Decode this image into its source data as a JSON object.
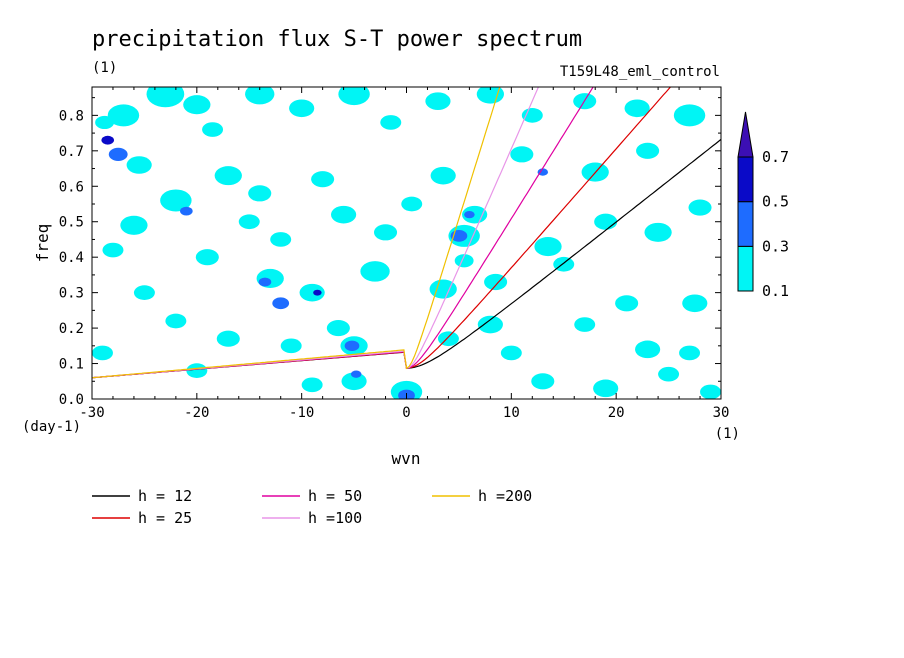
{
  "chart_data": {
    "type": "heatmap",
    "title": "precipitation flux S-T power spectrum",
    "units_label": "(1)",
    "run_label": "T159L48_eml_control",
    "xlabel": "wvn",
    "ylabel": "freq",
    "x_unit_label": "(1)",
    "y_unit_label": "(day-1)",
    "xlim": [
      -30,
      30
    ],
    "ylim": [
      0,
      0.88
    ],
    "x_ticks": [
      "-30",
      "-20",
      "-10",
      "0",
      "10",
      "20",
      "30"
    ],
    "x_tick_values": [
      -30,
      -20,
      -10,
      0,
      10,
      20,
      30
    ],
    "y_ticks": [
      "0.0",
      "0.1",
      "0.2",
      "0.3",
      "0.4",
      "0.5",
      "0.6",
      "0.7",
      "0.8"
    ],
    "y_tick_values": [
      0,
      0.1,
      0.2,
      0.3,
      0.4,
      0.5,
      0.6,
      0.7,
      0.8
    ],
    "contour_levels": [
      "0.1",
      "0.3",
      "0.5",
      "0.7"
    ],
    "contour_level_values": [
      0.1,
      0.3,
      0.5,
      0.7
    ],
    "level_colors": [
      "#00f5f5",
      "#1e6cff",
      "#0a0ac8",
      "#3c0fb4"
    ],
    "spectral_patches": [
      {
        "x": -28.8,
        "y": 0.78,
        "r": 0.9,
        "level": 1
      },
      {
        "x": -28.5,
        "y": 0.73,
        "r": 0.6,
        "level": 3
      },
      {
        "x": -27.5,
        "y": 0.69,
        "r": 0.9,
        "level": 2
      },
      {
        "x": -25.5,
        "y": 0.66,
        "r": 1.2,
        "level": 1
      },
      {
        "x": -27.0,
        "y": 0.8,
        "r": 1.5,
        "level": 1
      },
      {
        "x": -23.0,
        "y": 0.86,
        "r": 1.8,
        "level": 1
      },
      {
        "x": -20.0,
        "y": 0.83,
        "r": 1.3,
        "level": 1
      },
      {
        "x": -18.5,
        "y": 0.76,
        "r": 1.0,
        "level": 1
      },
      {
        "x": -14.0,
        "y": 0.86,
        "r": 1.4,
        "level": 1
      },
      {
        "x": -10.0,
        "y": 0.82,
        "r": 1.2,
        "level": 1
      },
      {
        "x": -5.0,
        "y": 0.86,
        "r": 1.5,
        "level": 1
      },
      {
        "x": -1.5,
        "y": 0.78,
        "r": 1.0,
        "level": 1
      },
      {
        "x": 3.0,
        "y": 0.84,
        "r": 1.2,
        "level": 1
      },
      {
        "x": 8.0,
        "y": 0.86,
        "r": 1.3,
        "level": 1
      },
      {
        "x": 12.0,
        "y": 0.8,
        "r": 1.0,
        "level": 1
      },
      {
        "x": 17.0,
        "y": 0.84,
        "r": 1.1,
        "level": 1
      },
      {
        "x": 22.0,
        "y": 0.82,
        "r": 1.2,
        "level": 1
      },
      {
        "x": 27.0,
        "y": 0.8,
        "r": 1.5,
        "level": 1
      },
      {
        "x": -22.0,
        "y": 0.56,
        "r": 1.5,
        "level": 1
      },
      {
        "x": -21.0,
        "y": 0.53,
        "r": 0.6,
        "level": 2
      },
      {
        "x": -17.0,
        "y": 0.63,
        "r": 1.3,
        "level": 1
      },
      {
        "x": -14.0,
        "y": 0.58,
        "r": 1.1,
        "level": 1
      },
      {
        "x": -15.0,
        "y": 0.5,
        "r": 1.0,
        "level": 1
      },
      {
        "x": -12.0,
        "y": 0.45,
        "r": 1.0,
        "level": 1
      },
      {
        "x": -26.0,
        "y": 0.49,
        "r": 1.3,
        "level": 1
      },
      {
        "x": -28.0,
        "y": 0.42,
        "r": 1.0,
        "level": 1
      },
      {
        "x": -19.0,
        "y": 0.4,
        "r": 1.1,
        "level": 1
      },
      {
        "x": -13.0,
        "y": 0.34,
        "r": 1.3,
        "level": 1
      },
      {
        "x": -13.5,
        "y": 0.33,
        "r": 0.6,
        "level": 2
      },
      {
        "x": -12.0,
        "y": 0.27,
        "r": 0.8,
        "level": 2
      },
      {
        "x": -9.0,
        "y": 0.3,
        "r": 1.2,
        "level": 1
      },
      {
        "x": -8.5,
        "y": 0.3,
        "r": 0.4,
        "level": 3
      },
      {
        "x": -25.0,
        "y": 0.3,
        "r": 1.0,
        "level": 1
      },
      {
        "x": -22.0,
        "y": 0.22,
        "r": 1.0,
        "level": 1
      },
      {
        "x": -17.0,
        "y": 0.17,
        "r": 1.1,
        "level": 1
      },
      {
        "x": -11.0,
        "y": 0.15,
        "r": 1.0,
        "level": 1
      },
      {
        "x": -6.5,
        "y": 0.2,
        "r": 1.1,
        "level": 1
      },
      {
        "x": -5.0,
        "y": 0.15,
        "r": 1.3,
        "level": 1
      },
      {
        "x": -5.2,
        "y": 0.15,
        "r": 0.7,
        "level": 2
      },
      {
        "x": -5.0,
        "y": 0.05,
        "r": 1.2,
        "level": 1
      },
      {
        "x": -4.8,
        "y": 0.07,
        "r": 0.5,
        "level": 2
      },
      {
        "x": 0.0,
        "y": 0.02,
        "r": 1.5,
        "level": 1
      },
      {
        "x": 0.0,
        "y": 0.01,
        "r": 0.8,
        "level": 2
      },
      {
        "x": -9.0,
        "y": 0.04,
        "r": 1.0,
        "level": 1
      },
      {
        "x": -20.0,
        "y": 0.08,
        "r": 1.0,
        "level": 1
      },
      {
        "x": -3.0,
        "y": 0.36,
        "r": 1.4,
        "level": 1
      },
      {
        "x": -2.0,
        "y": 0.47,
        "r": 1.1,
        "level": 1
      },
      {
        "x": -6.0,
        "y": 0.52,
        "r": 1.2,
        "level": 1
      },
      {
        "x": -8.0,
        "y": 0.62,
        "r": 1.1,
        "level": 1
      },
      {
        "x": 3.5,
        "y": 0.31,
        "r": 1.3,
        "level": 1
      },
      {
        "x": 5.5,
        "y": 0.46,
        "r": 1.5,
        "level": 1
      },
      {
        "x": 5.0,
        "y": 0.46,
        "r": 0.8,
        "level": 2
      },
      {
        "x": 6.5,
        "y": 0.52,
        "r": 1.2,
        "level": 1
      },
      {
        "x": 6.0,
        "y": 0.52,
        "r": 0.5,
        "level": 2
      },
      {
        "x": 5.5,
        "y": 0.39,
        "r": 0.9,
        "level": 1
      },
      {
        "x": 8.5,
        "y": 0.33,
        "r": 1.1,
        "level": 1
      },
      {
        "x": 8.0,
        "y": 0.21,
        "r": 1.2,
        "level": 1
      },
      {
        "x": 4.0,
        "y": 0.17,
        "r": 1.0,
        "level": 1
      },
      {
        "x": 10.0,
        "y": 0.13,
        "r": 1.0,
        "level": 1
      },
      {
        "x": 13.0,
        "y": 0.05,
        "r": 1.1,
        "level": 1
      },
      {
        "x": 19.0,
        "y": 0.03,
        "r": 1.2,
        "level": 1
      },
      {
        "x": 25.0,
        "y": 0.07,
        "r": 1.0,
        "level": 1
      },
      {
        "x": 23.0,
        "y": 0.14,
        "r": 1.2,
        "level": 1
      },
      {
        "x": 27.0,
        "y": 0.13,
        "r": 1.0,
        "level": 1
      },
      {
        "x": 17.0,
        "y": 0.21,
        "r": 1.0,
        "level": 1
      },
      {
        "x": 21.0,
        "y": 0.27,
        "r": 1.1,
        "level": 1
      },
      {
        "x": 27.5,
        "y": 0.27,
        "r": 1.2,
        "level": 1
      },
      {
        "x": 13.5,
        "y": 0.43,
        "r": 1.3,
        "level": 1
      },
      {
        "x": 15.0,
        "y": 0.38,
        "r": 1.0,
        "level": 1
      },
      {
        "x": 19.0,
        "y": 0.5,
        "r": 1.1,
        "level": 1
      },
      {
        "x": 24.0,
        "y": 0.47,
        "r": 1.3,
        "level": 1
      },
      {
        "x": 28.0,
        "y": 0.54,
        "r": 1.1,
        "level": 1
      },
      {
        "x": 18.0,
        "y": 0.64,
        "r": 1.3,
        "level": 1
      },
      {
        "x": 23.0,
        "y": 0.7,
        "r": 1.1,
        "level": 1
      },
      {
        "x": 11.0,
        "y": 0.69,
        "r": 1.1,
        "level": 1
      },
      {
        "x": 13.0,
        "y": 0.64,
        "r": 0.5,
        "level": 2
      },
      {
        "x": 3.5,
        "y": 0.63,
        "r": 1.2,
        "level": 1
      },
      {
        "x": 0.5,
        "y": 0.55,
        "r": 1.0,
        "level": 1
      },
      {
        "x": 29.0,
        "y": 0.02,
        "r": 1.0,
        "level": 1
      },
      {
        "x": -29.0,
        "y": 0.13,
        "r": 1.0,
        "level": 1
      }
    ],
    "series": [
      {
        "name": "h = 12",
        "equivalent_depth_m": 12,
        "color": "#000000"
      },
      {
        "name": "h = 25",
        "equivalent_depth_m": 25,
        "color": "#dd0000"
      },
      {
        "name": "h = 50",
        "equivalent_depth_m": 50,
        "color": "#e000a0"
      },
      {
        "name": "h =100",
        "equivalent_depth_m": 100,
        "color": "#e896e8"
      },
      {
        "name": "h =200",
        "equivalent_depth_m": 200,
        "color": "#f0c000"
      }
    ],
    "legend_placement": "bottom"
  }
}
